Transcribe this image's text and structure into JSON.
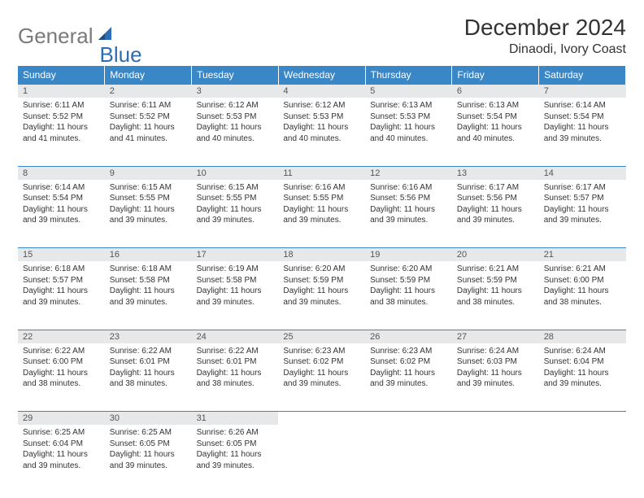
{
  "logo": {
    "text1": "General",
    "text2": "Blue"
  },
  "header": {
    "title": "December 2024",
    "location": "Dinaodi, Ivory Coast"
  },
  "colors": {
    "header_bg": "#3a87c8",
    "header_text": "#ffffff",
    "daynum_bg": "#e7e8e9",
    "border": "#3a87c8",
    "logo_grey": "#7a7a7a",
    "logo_blue": "#2d6db3"
  },
  "weekdays": [
    "Sunday",
    "Monday",
    "Tuesday",
    "Wednesday",
    "Thursday",
    "Friday",
    "Saturday"
  ],
  "weeks": [
    [
      {
        "n": "1",
        "sr": "6:11 AM",
        "ss": "5:52 PM",
        "dl": "11 hours and 41 minutes."
      },
      {
        "n": "2",
        "sr": "6:11 AM",
        "ss": "5:52 PM",
        "dl": "11 hours and 41 minutes."
      },
      {
        "n": "3",
        "sr": "6:12 AM",
        "ss": "5:53 PM",
        "dl": "11 hours and 40 minutes."
      },
      {
        "n": "4",
        "sr": "6:12 AM",
        "ss": "5:53 PM",
        "dl": "11 hours and 40 minutes."
      },
      {
        "n": "5",
        "sr": "6:13 AM",
        "ss": "5:53 PM",
        "dl": "11 hours and 40 minutes."
      },
      {
        "n": "6",
        "sr": "6:13 AM",
        "ss": "5:54 PM",
        "dl": "11 hours and 40 minutes."
      },
      {
        "n": "7",
        "sr": "6:14 AM",
        "ss": "5:54 PM",
        "dl": "11 hours and 39 minutes."
      }
    ],
    [
      {
        "n": "8",
        "sr": "6:14 AM",
        "ss": "5:54 PM",
        "dl": "11 hours and 39 minutes."
      },
      {
        "n": "9",
        "sr": "6:15 AM",
        "ss": "5:55 PM",
        "dl": "11 hours and 39 minutes."
      },
      {
        "n": "10",
        "sr": "6:15 AM",
        "ss": "5:55 PM",
        "dl": "11 hours and 39 minutes."
      },
      {
        "n": "11",
        "sr": "6:16 AM",
        "ss": "5:55 PM",
        "dl": "11 hours and 39 minutes."
      },
      {
        "n": "12",
        "sr": "6:16 AM",
        "ss": "5:56 PM",
        "dl": "11 hours and 39 minutes."
      },
      {
        "n": "13",
        "sr": "6:17 AM",
        "ss": "5:56 PM",
        "dl": "11 hours and 39 minutes."
      },
      {
        "n": "14",
        "sr": "6:17 AM",
        "ss": "5:57 PM",
        "dl": "11 hours and 39 minutes."
      }
    ],
    [
      {
        "n": "15",
        "sr": "6:18 AM",
        "ss": "5:57 PM",
        "dl": "11 hours and 39 minutes."
      },
      {
        "n": "16",
        "sr": "6:18 AM",
        "ss": "5:58 PM",
        "dl": "11 hours and 39 minutes."
      },
      {
        "n": "17",
        "sr": "6:19 AM",
        "ss": "5:58 PM",
        "dl": "11 hours and 39 minutes."
      },
      {
        "n": "18",
        "sr": "6:20 AM",
        "ss": "5:59 PM",
        "dl": "11 hours and 39 minutes."
      },
      {
        "n": "19",
        "sr": "6:20 AM",
        "ss": "5:59 PM",
        "dl": "11 hours and 38 minutes."
      },
      {
        "n": "20",
        "sr": "6:21 AM",
        "ss": "5:59 PM",
        "dl": "11 hours and 38 minutes."
      },
      {
        "n": "21",
        "sr": "6:21 AM",
        "ss": "6:00 PM",
        "dl": "11 hours and 38 minutes."
      }
    ],
    [
      {
        "n": "22",
        "sr": "6:22 AM",
        "ss": "6:00 PM",
        "dl": "11 hours and 38 minutes."
      },
      {
        "n": "23",
        "sr": "6:22 AM",
        "ss": "6:01 PM",
        "dl": "11 hours and 38 minutes."
      },
      {
        "n": "24",
        "sr": "6:22 AM",
        "ss": "6:01 PM",
        "dl": "11 hours and 38 minutes."
      },
      {
        "n": "25",
        "sr": "6:23 AM",
        "ss": "6:02 PM",
        "dl": "11 hours and 39 minutes."
      },
      {
        "n": "26",
        "sr": "6:23 AM",
        "ss": "6:02 PM",
        "dl": "11 hours and 39 minutes."
      },
      {
        "n": "27",
        "sr": "6:24 AM",
        "ss": "6:03 PM",
        "dl": "11 hours and 39 minutes."
      },
      {
        "n": "28",
        "sr": "6:24 AM",
        "ss": "6:04 PM",
        "dl": "11 hours and 39 minutes."
      }
    ],
    [
      {
        "n": "29",
        "sr": "6:25 AM",
        "ss": "6:04 PM",
        "dl": "11 hours and 39 minutes."
      },
      {
        "n": "30",
        "sr": "6:25 AM",
        "ss": "6:05 PM",
        "dl": "11 hours and 39 minutes."
      },
      {
        "n": "31",
        "sr": "6:26 AM",
        "ss": "6:05 PM",
        "dl": "11 hours and 39 minutes."
      },
      null,
      null,
      null,
      null
    ]
  ],
  "labels": {
    "sunrise": "Sunrise: ",
    "sunset": "Sunset: ",
    "daylight": "Daylight: "
  }
}
